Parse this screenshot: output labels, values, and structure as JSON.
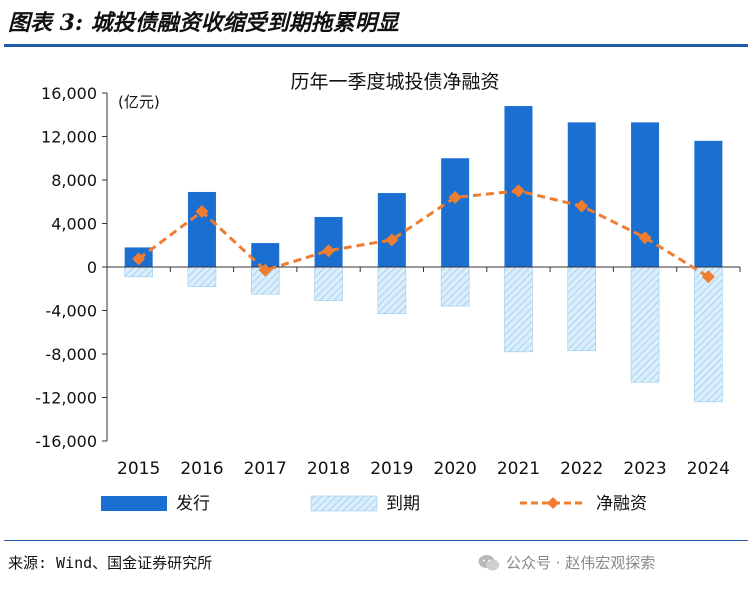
{
  "figure": {
    "title": "图表 3: 城投债融资收缩受到期拖累明显",
    "source": "来源: Wind、国金证券研究所",
    "watermark": "公众号 · 赵伟宏观探索"
  },
  "colors": {
    "issuance": "#1a6fd1",
    "maturity_fill": "#dbeefb",
    "maturity_hatch": "#9ccbee",
    "net_financing": "#ef7d31",
    "rule": "#1f5ba8"
  },
  "chart_data": {
    "type": "bar",
    "title": "历年一季度城投债净融资",
    "unit_label": "(亿元)",
    "categories": [
      "2015",
      "2016",
      "2017",
      "2018",
      "2019",
      "2020",
      "2021",
      "2022",
      "2023",
      "2024"
    ],
    "series": [
      {
        "name": "发行",
        "kind": "bar",
        "values": [
          1800,
          6900,
          2200,
          4600,
          6800,
          10000,
          14800,
          13300,
          13300,
          11600
        ]
      },
      {
        "name": "到期",
        "kind": "bar-hatched",
        "values": [
          -900,
          -1800,
          -2500,
          -3100,
          -4300,
          -3600,
          -7800,
          -7700,
          -10600,
          -12400
        ]
      },
      {
        "name": "净融资",
        "kind": "line",
        "values": [
          750,
          5100,
          -300,
          1500,
          2500,
          6400,
          7000,
          5600,
          2700,
          -900
        ]
      }
    ],
    "yticks": [
      "16,000",
      "12,000",
      "8,000",
      "4,000",
      "0",
      "-4,000",
      "-8,000",
      "-12,000",
      "-16,000"
    ],
    "ylim": [
      -16000,
      16000
    ],
    "grid": false,
    "legend": "bottom"
  }
}
